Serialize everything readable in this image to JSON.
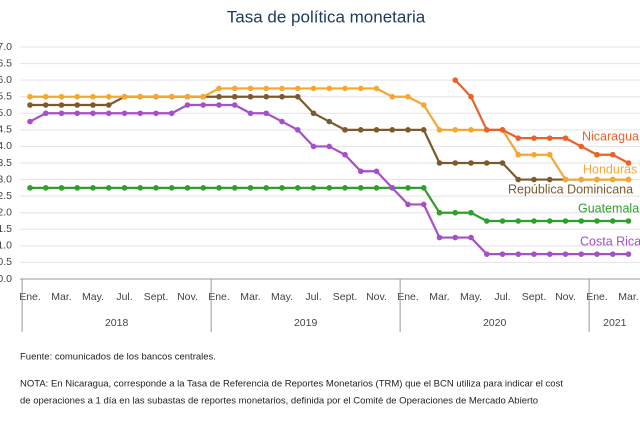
{
  "chart_data": {
    "type": "line",
    "title": "Tasa de política monetaria",
    "categories": [
      "Ene.",
      null,
      "Mar.",
      null,
      "May.",
      null,
      "Jul.",
      null,
      "Sept.",
      null,
      "Nov.",
      null,
      "Ene.",
      null,
      "Mar.",
      null,
      "May.",
      null,
      "Jul.",
      null,
      "Sept.",
      null,
      "Nov.",
      null,
      "Ene.",
      null,
      "Mar.",
      null,
      "May.",
      null,
      "Jul.",
      null,
      "Sept.",
      null,
      "Nov.",
      null,
      "Ene.",
      null,
      "Mar."
    ],
    "year_labels": [
      "2018",
      "2019",
      "2020",
      "2021"
    ],
    "ylim": [
      0,
      7
    ],
    "yticks": [
      {
        "value": 0,
        "label": "0.0"
      },
      {
        "value": 0.5,
        "label": "0.5"
      },
      {
        "value": 1,
        "label": "1.0"
      },
      {
        "value": 1.5,
        "label": "1.5"
      },
      {
        "value": 2,
        "label": "2.0"
      },
      {
        "value": 2.5,
        "label": "2.5"
      },
      {
        "value": 3,
        "label": "3.0"
      },
      {
        "value": 3.5,
        "label": "3.5"
      },
      {
        "value": 4,
        "label": "4.0"
      },
      {
        "value": 4.5,
        "label": "4.5"
      },
      {
        "value": 5,
        "label": "5.0"
      },
      {
        "value": 5.5,
        "label": "5.5"
      },
      {
        "value": 6,
        "label": "6.0"
      },
      {
        "value": 6.5,
        "label": "6.5"
      },
      {
        "value": 7,
        "label": "7.0"
      }
    ],
    "grid": true,
    "series": [
      {
        "name": "Guatemala",
        "color": "#2ea02c",
        "values": [
          2.75,
          2.75,
          2.75,
          2.75,
          2.75,
          2.75,
          2.75,
          2.75,
          2.75,
          2.75,
          2.75,
          2.75,
          2.75,
          2.75,
          2.75,
          2.75,
          2.75,
          2.75,
          2.75,
          2.75,
          2.75,
          2.75,
          2.75,
          2.75,
          2.75,
          2.75,
          2.0,
          2.0,
          2.0,
          1.75,
          1.75,
          1.75,
          1.75,
          1.75,
          1.75,
          1.75,
          1.75,
          1.75,
          1.75
        ]
      },
      {
        "name": "Costa Rica",
        "color": "#a64fc9",
        "values": [
          4.75,
          5,
          5,
          5,
          5,
          5,
          5,
          5,
          5,
          5,
          5.25,
          5.25,
          5.25,
          5.25,
          5,
          5,
          4.75,
          4.5,
          4,
          4,
          3.75,
          3.25,
          3.25,
          2.75,
          2.25,
          2.25,
          1.25,
          1.25,
          1.25,
          0.75,
          0.75,
          0.75,
          0.75,
          0.75,
          0.75,
          0.75,
          0.75,
          0.75,
          0.75
        ]
      },
      {
        "name": "República Dominicana",
        "color": "#7b5a2e",
        "values": [
          5.25,
          5.25,
          5.25,
          5.25,
          5.25,
          5.25,
          5.5,
          5.5,
          5.5,
          5.5,
          5.5,
          5.5,
          5.5,
          5.5,
          5.5,
          5.5,
          5.5,
          5.5,
          5.0,
          4.75,
          4.5,
          4.5,
          4.5,
          4.5,
          4.5,
          4.5,
          3.5,
          3.5,
          3.5,
          3.5,
          3.5,
          3.0,
          3.0,
          3.0,
          3.0,
          3.0,
          3.0,
          3.0,
          3.0
        ]
      },
      {
        "name": "Honduras",
        "color": "#f5a733",
        "values": [
          5.5,
          5.5,
          5.5,
          5.5,
          5.5,
          5.5,
          5.5,
          5.5,
          5.5,
          5.5,
          5.5,
          5.5,
          5.75,
          5.75,
          5.75,
          5.75,
          5.75,
          5.75,
          5.75,
          5.75,
          5.75,
          5.75,
          5.75,
          5.5,
          5.5,
          5.25,
          4.5,
          4.5,
          4.5,
          4.5,
          4.5,
          3.75,
          3.75,
          3.75,
          3.0,
          3.0,
          3.0,
          3.0,
          3.0
        ]
      },
      {
        "name": "Nicaragua",
        "color": "#e8622c",
        "values": [
          null,
          null,
          null,
          null,
          null,
          null,
          null,
          null,
          null,
          null,
          null,
          null,
          null,
          null,
          null,
          null,
          null,
          null,
          null,
          null,
          null,
          null,
          null,
          null,
          null,
          null,
          null,
          6.0,
          5.5,
          4.5,
          4.5,
          4.25,
          4.25,
          4.25,
          4.25,
          4.0,
          3.75,
          3.75,
          3.5
        ]
      }
    ],
    "source": "Fuente: comunicados de los bancos centrales.",
    "note": [
      "NOTA: En Nicaragua, corresponde a la Tasa de Referencia de Reportes Monetarios (TRM) que el BCN utiliza para indicar el cost",
      "de operaciones a 1 día en las subastas de reportes monetarios, definida por el Comité de Operaciones de Mercado Abierto"
    ]
  }
}
